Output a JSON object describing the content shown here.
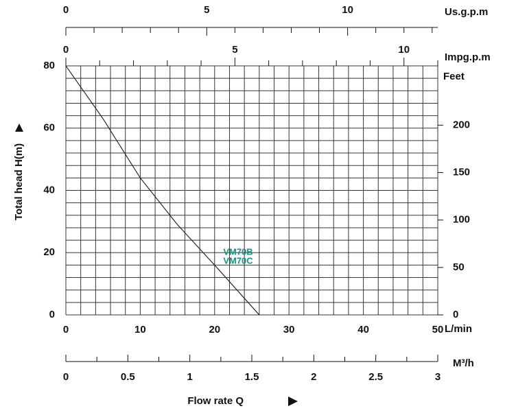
{
  "chart_data": {
    "type": "line",
    "x_label": "Flow rate Q",
    "y_label": "Total head H(m)",
    "x_unit": "L/min",
    "xlim": [
      0,
      50
    ],
    "ylim": [
      0,
      80
    ],
    "xticks": [
      0,
      10,
      20,
      30,
      40,
      50
    ],
    "yticks": [
      0,
      20,
      40,
      60,
      80
    ],
    "xgrid": [
      0,
      2,
      4,
      6,
      8,
      10,
      12,
      14,
      16,
      18,
      20,
      22,
      24,
      26,
      28,
      30,
      32,
      34,
      36,
      38,
      40,
      42,
      44,
      46,
      48,
      50
    ],
    "ygrid": [
      0,
      4,
      8,
      12,
      16,
      20,
      24,
      28,
      32,
      36,
      40,
      44,
      48,
      52,
      56,
      60,
      64,
      68,
      72,
      76,
      80
    ],
    "series": [
      {
        "name": "VM70B",
        "color": "#1a9080",
        "x": [
          0,
          5,
          10,
          15,
          20,
          26
        ],
        "values": [
          80,
          63,
          44,
          29,
          16,
          0
        ]
      },
      {
        "name": "VM70C",
        "color": "#1a9080",
        "x": [
          0,
          5,
          10,
          15,
          20,
          26
        ],
        "values": [
          80,
          63,
          44,
          29,
          16,
          0
        ]
      }
    ],
    "right_axis": {
      "label": "Feet",
      "lim": [
        0,
        262.5
      ],
      "ticks": [
        0,
        50,
        100,
        150,
        200
      ]
    },
    "top_axes": [
      {
        "label": "Us.g.p.m",
        "lim": [
          0,
          13.2
        ],
        "ticks": [
          0,
          5,
          10
        ],
        "minor_ticks": [
          1,
          2,
          3,
          4,
          6,
          7,
          8,
          9,
          11,
          12,
          13
        ]
      },
      {
        "label": "Impg.p.m",
        "lim": [
          0,
          11
        ],
        "ticks": [
          0,
          5,
          10
        ],
        "minor_ticks": [
          1,
          2,
          3,
          4,
          6,
          7,
          8,
          9,
          11
        ]
      }
    ],
    "bottom_axis": {
      "label": "M³/h",
      "lim": [
        0,
        3
      ],
      "ticks": [
        0,
        0.5,
        1,
        1.5,
        2,
        2.5,
        3
      ],
      "minor_ticks": [
        0.25,
        0.75,
        1.25,
        1.75,
        2.25,
        2.75
      ]
    }
  }
}
